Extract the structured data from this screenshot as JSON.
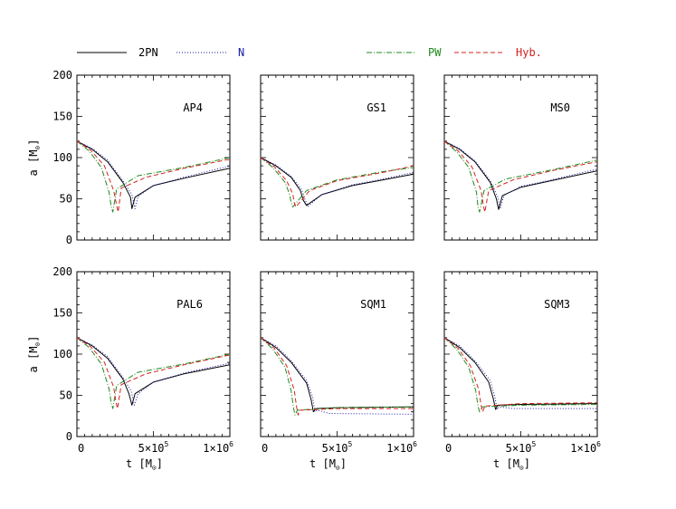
{
  "figure": {
    "legend": [
      {
        "label": "2PN",
        "color": "#000000",
        "style": "solid"
      },
      {
        "label": "N",
        "color": "#1a1aa6",
        "style": "dotted"
      },
      {
        "label": "PW",
        "color": "#1f8a1f",
        "style": "dashdot"
      },
      {
        "label": "Hyb.",
        "color": "#d42020",
        "style": "dashed"
      }
    ],
    "x_ticks": [
      "0",
      "5×10",
      "1×10"
    ],
    "x_tick_exponents": [
      "",
      "5",
      "6"
    ],
    "y_ticks": [
      "0",
      "50",
      "100",
      "150",
      "200"
    ],
    "xlabel_text": "t [M",
    "ylabel_text": "a [M",
    "label_close": "]",
    "sun_symbol": "⊙"
  },
  "chart_data": [
    {
      "type": "line",
      "title": "AP4",
      "xlim": [
        0,
        1000000
      ],
      "ylim": [
        0,
        200
      ],
      "series": [
        {
          "name": "2PN",
          "x": [
            0,
            100000,
            200000,
            300000,
            350000,
            360000,
            380000,
            500000,
            700000,
            1000000
          ],
          "y": [
            120,
            110,
            95,
            70,
            52,
            38,
            52,
            66,
            75,
            87
          ]
        },
        {
          "name": "N",
          "x": [
            0,
            100000,
            200000,
            300000,
            360000,
            380000,
            400000,
            500000,
            700000,
            1000000
          ],
          "y": [
            120,
            111,
            97,
            72,
            55,
            38,
            53,
            66,
            76,
            90
          ]
        },
        {
          "name": "PW",
          "x": [
            0,
            80000,
            160000,
            210000,
            225000,
            235000,
            260000,
            400000,
            700000,
            1000000
          ],
          "y": [
            120,
            108,
            88,
            58,
            40,
            34,
            62,
            78,
            88,
            100
          ]
        },
        {
          "name": "Hyb.",
          "x": [
            0,
            90000,
            180000,
            240000,
            260000,
            270000,
            290000,
            450000,
            700000,
            1000000
          ],
          "y": [
            120,
            109,
            90,
            60,
            42,
            34,
            63,
            76,
            87,
            98
          ]
        }
      ]
    },
    {
      "type": "line",
      "title": "GS1",
      "xlim": [
        0,
        1000000
      ],
      "ylim": [
        0,
        200
      ],
      "series": [
        {
          "name": "2PN",
          "x": [
            0,
            100000,
            200000,
            260000,
            280000,
            300000,
            400000,
            600000,
            800000,
            1000000
          ],
          "y": [
            100,
            90,
            76,
            60,
            48,
            42,
            55,
            66,
            73,
            80
          ]
        },
        {
          "name": "N",
          "x": [
            0,
            100000,
            200000,
            270000,
            290000,
            310000,
            400000,
            600000,
            800000,
            1000000
          ],
          "y": [
            100,
            91,
            77,
            61,
            49,
            41,
            55,
            67,
            74,
            82
          ]
        },
        {
          "name": "PW",
          "x": [
            0,
            80000,
            160000,
            190000,
            200000,
            210000,
            300000,
            500000,
            800000,
            1000000
          ],
          "y": [
            100,
            88,
            70,
            55,
            45,
            40,
            60,
            73,
            83,
            88
          ]
        },
        {
          "name": "Hyb.",
          "x": [
            0,
            90000,
            170000,
            210000,
            220000,
            230000,
            320000,
            500000,
            800000,
            1000000
          ],
          "y": [
            100,
            89,
            72,
            56,
            45,
            40,
            60,
            72,
            82,
            90
          ]
        }
      ]
    },
    {
      "type": "line",
      "title": "MS0",
      "xlim": [
        0,
        1000000
      ],
      "ylim": [
        0,
        200
      ],
      "series": [
        {
          "name": "2PN",
          "x": [
            0,
            100000,
            200000,
            300000,
            340000,
            355000,
            380000,
            500000,
            700000,
            1000000
          ],
          "y": [
            120,
            110,
            95,
            70,
            50,
            37,
            54,
            64,
            72,
            84
          ]
        },
        {
          "name": "N",
          "x": [
            0,
            100000,
            200000,
            300000,
            350000,
            365000,
            390000,
            500000,
            700000,
            1000000
          ],
          "y": [
            120,
            111,
            96,
            72,
            52,
            38,
            54,
            65,
            73,
            86
          ]
        },
        {
          "name": "PW",
          "x": [
            0,
            80000,
            160000,
            210000,
            220000,
            230000,
            260000,
            400000,
            700000,
            1000000
          ],
          "y": [
            120,
            107,
            88,
            58,
            40,
            34,
            60,
            74,
            85,
            97
          ]
        },
        {
          "name": "Hyb.",
          "x": [
            0,
            90000,
            180000,
            240000,
            255000,
            265000,
            290000,
            450000,
            700000,
            1000000
          ],
          "y": [
            120,
            108,
            89,
            60,
            42,
            34,
            60,
            73,
            84,
            95
          ]
        }
      ]
    },
    {
      "type": "line",
      "title": "PAL6",
      "xlim": [
        0,
        1000000
      ],
      "ylim": [
        0,
        200
      ],
      "series": [
        {
          "name": "2PN",
          "x": [
            0,
            100000,
            200000,
            300000,
            340000,
            360000,
            380000,
            500000,
            700000,
            1000000
          ],
          "y": [
            120,
            110,
            95,
            70,
            52,
            38,
            52,
            66,
            76,
            87
          ]
        },
        {
          "name": "N",
          "x": [
            0,
            100000,
            200000,
            300000,
            355000,
            375000,
            400000,
            500000,
            700000,
            1000000
          ],
          "y": [
            120,
            111,
            97,
            72,
            55,
            38,
            52,
            66,
            77,
            89
          ]
        },
        {
          "name": "PW",
          "x": [
            0,
            80000,
            160000,
            210000,
            225000,
            235000,
            260000,
            400000,
            700000,
            1000000
          ],
          "y": [
            120,
            108,
            88,
            58,
            40,
            34,
            62,
            78,
            88,
            100
          ]
        },
        {
          "name": "Hyb.",
          "x": [
            0,
            90000,
            180000,
            240000,
            255000,
            265000,
            290000,
            450000,
            700000,
            1000000
          ],
          "y": [
            120,
            109,
            90,
            60,
            42,
            34,
            63,
            76,
            87,
            99
          ]
        }
      ]
    },
    {
      "type": "line",
      "title": "SQM1",
      "xlim": [
        0,
        1000000
      ],
      "ylim": [
        0,
        200
      ],
      "series": [
        {
          "name": "2PN",
          "x": [
            0,
            100000,
            200000,
            300000,
            330000,
            345000,
            360000,
            500000,
            1000000
          ],
          "y": [
            120,
            108,
            90,
            65,
            45,
            30,
            34,
            35,
            36
          ]
        },
        {
          "name": "N",
          "x": [
            0,
            100000,
            200000,
            300000,
            340000,
            355000,
            370000,
            450000,
            1000000
          ],
          "y": [
            120,
            110,
            92,
            68,
            48,
            30,
            32,
            28,
            27
          ]
        },
        {
          "name": "PW",
          "x": [
            0,
            80000,
            160000,
            200000,
            215000,
            225000,
            240000,
            500000,
            1000000
          ],
          "y": [
            120,
            106,
            84,
            55,
            35,
            26,
            32,
            35,
            36
          ]
        },
        {
          "name": "Hyb.",
          "x": [
            0,
            90000,
            170000,
            220000,
            235000,
            245000,
            260000,
            500000,
            1000000
          ],
          "y": [
            120,
            107,
            86,
            56,
            36,
            26,
            32,
            34,
            34
          ]
        }
      ]
    },
    {
      "type": "line",
      "title": "SQM3",
      "xlim": [
        0,
        1000000
      ],
      "ylim": [
        0,
        200
      ],
      "series": [
        {
          "name": "2PN",
          "x": [
            0,
            100000,
            200000,
            290000,
            320000,
            335000,
            350000,
            500000,
            1000000
          ],
          "y": [
            120,
            108,
            90,
            66,
            46,
            33,
            38,
            39,
            40
          ]
        },
        {
          "name": "N",
          "x": [
            0,
            100000,
            200000,
            300000,
            330000,
            345000,
            360000,
            450000,
            1000000
          ],
          "y": [
            120,
            110,
            92,
            68,
            48,
            33,
            36,
            34,
            34
          ]
        },
        {
          "name": "PW",
          "x": [
            0,
            80000,
            160000,
            205000,
            220000,
            230000,
            245000,
            500000,
            1000000
          ],
          "y": [
            120,
            106,
            84,
            56,
            37,
            30,
            36,
            38,
            39
          ]
        },
        {
          "name": "Hyb.",
          "x": [
            0,
            90000,
            170000,
            225000,
            240000,
            250000,
            265000,
            500000,
            1000000
          ],
          "y": [
            120,
            107,
            86,
            57,
            38,
            30,
            37,
            40,
            41
          ]
        }
      ]
    }
  ]
}
